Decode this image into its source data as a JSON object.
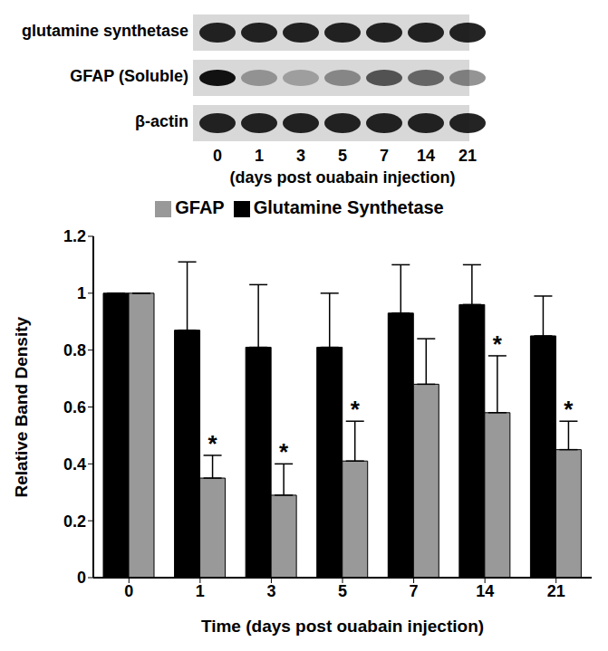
{
  "blot": {
    "rows": [
      "glutamine synthetase",
      "GFAP (Soluble)",
      "β-actin"
    ],
    "lanes": [
      "0",
      "1",
      "3",
      "5",
      "7",
      "14",
      "21"
    ],
    "caption": "(days post ouabain injection)"
  },
  "chart_data": {
    "type": "bar",
    "categories": [
      "0",
      "1",
      "3",
      "5",
      "7",
      "14",
      "21"
    ],
    "x_label": "Time (days post ouabain injection)",
    "y_label": "Relative Band Density",
    "ylim": [
      0,
      1.2
    ],
    "yticks": [
      0,
      0.2,
      0.4,
      0.6,
      0.8,
      1,
      1.2
    ],
    "grid": false,
    "legend": "top",
    "series": [
      {
        "name": "Glutamine Synthetase",
        "color": "#000000",
        "values": [
          1,
          0.87,
          0.81,
          0.81,
          0.93,
          0.96,
          0.85
        ],
        "errors": [
          0,
          0.24,
          0.22,
          0.19,
          0.17,
          0.14,
          0.14
        ],
        "significance": [
          null,
          null,
          null,
          null,
          null,
          null,
          null
        ]
      },
      {
        "name": "GFAP",
        "color": "#999999",
        "values": [
          1,
          0.35,
          0.29,
          0.41,
          0.68,
          0.58,
          0.45
        ],
        "errors": [
          0,
          0.08,
          0.11,
          0.14,
          0.16,
          0.2,
          0.1
        ],
        "significance": [
          null,
          "*",
          "*",
          "*",
          null,
          "*",
          "*"
        ]
      }
    ]
  }
}
